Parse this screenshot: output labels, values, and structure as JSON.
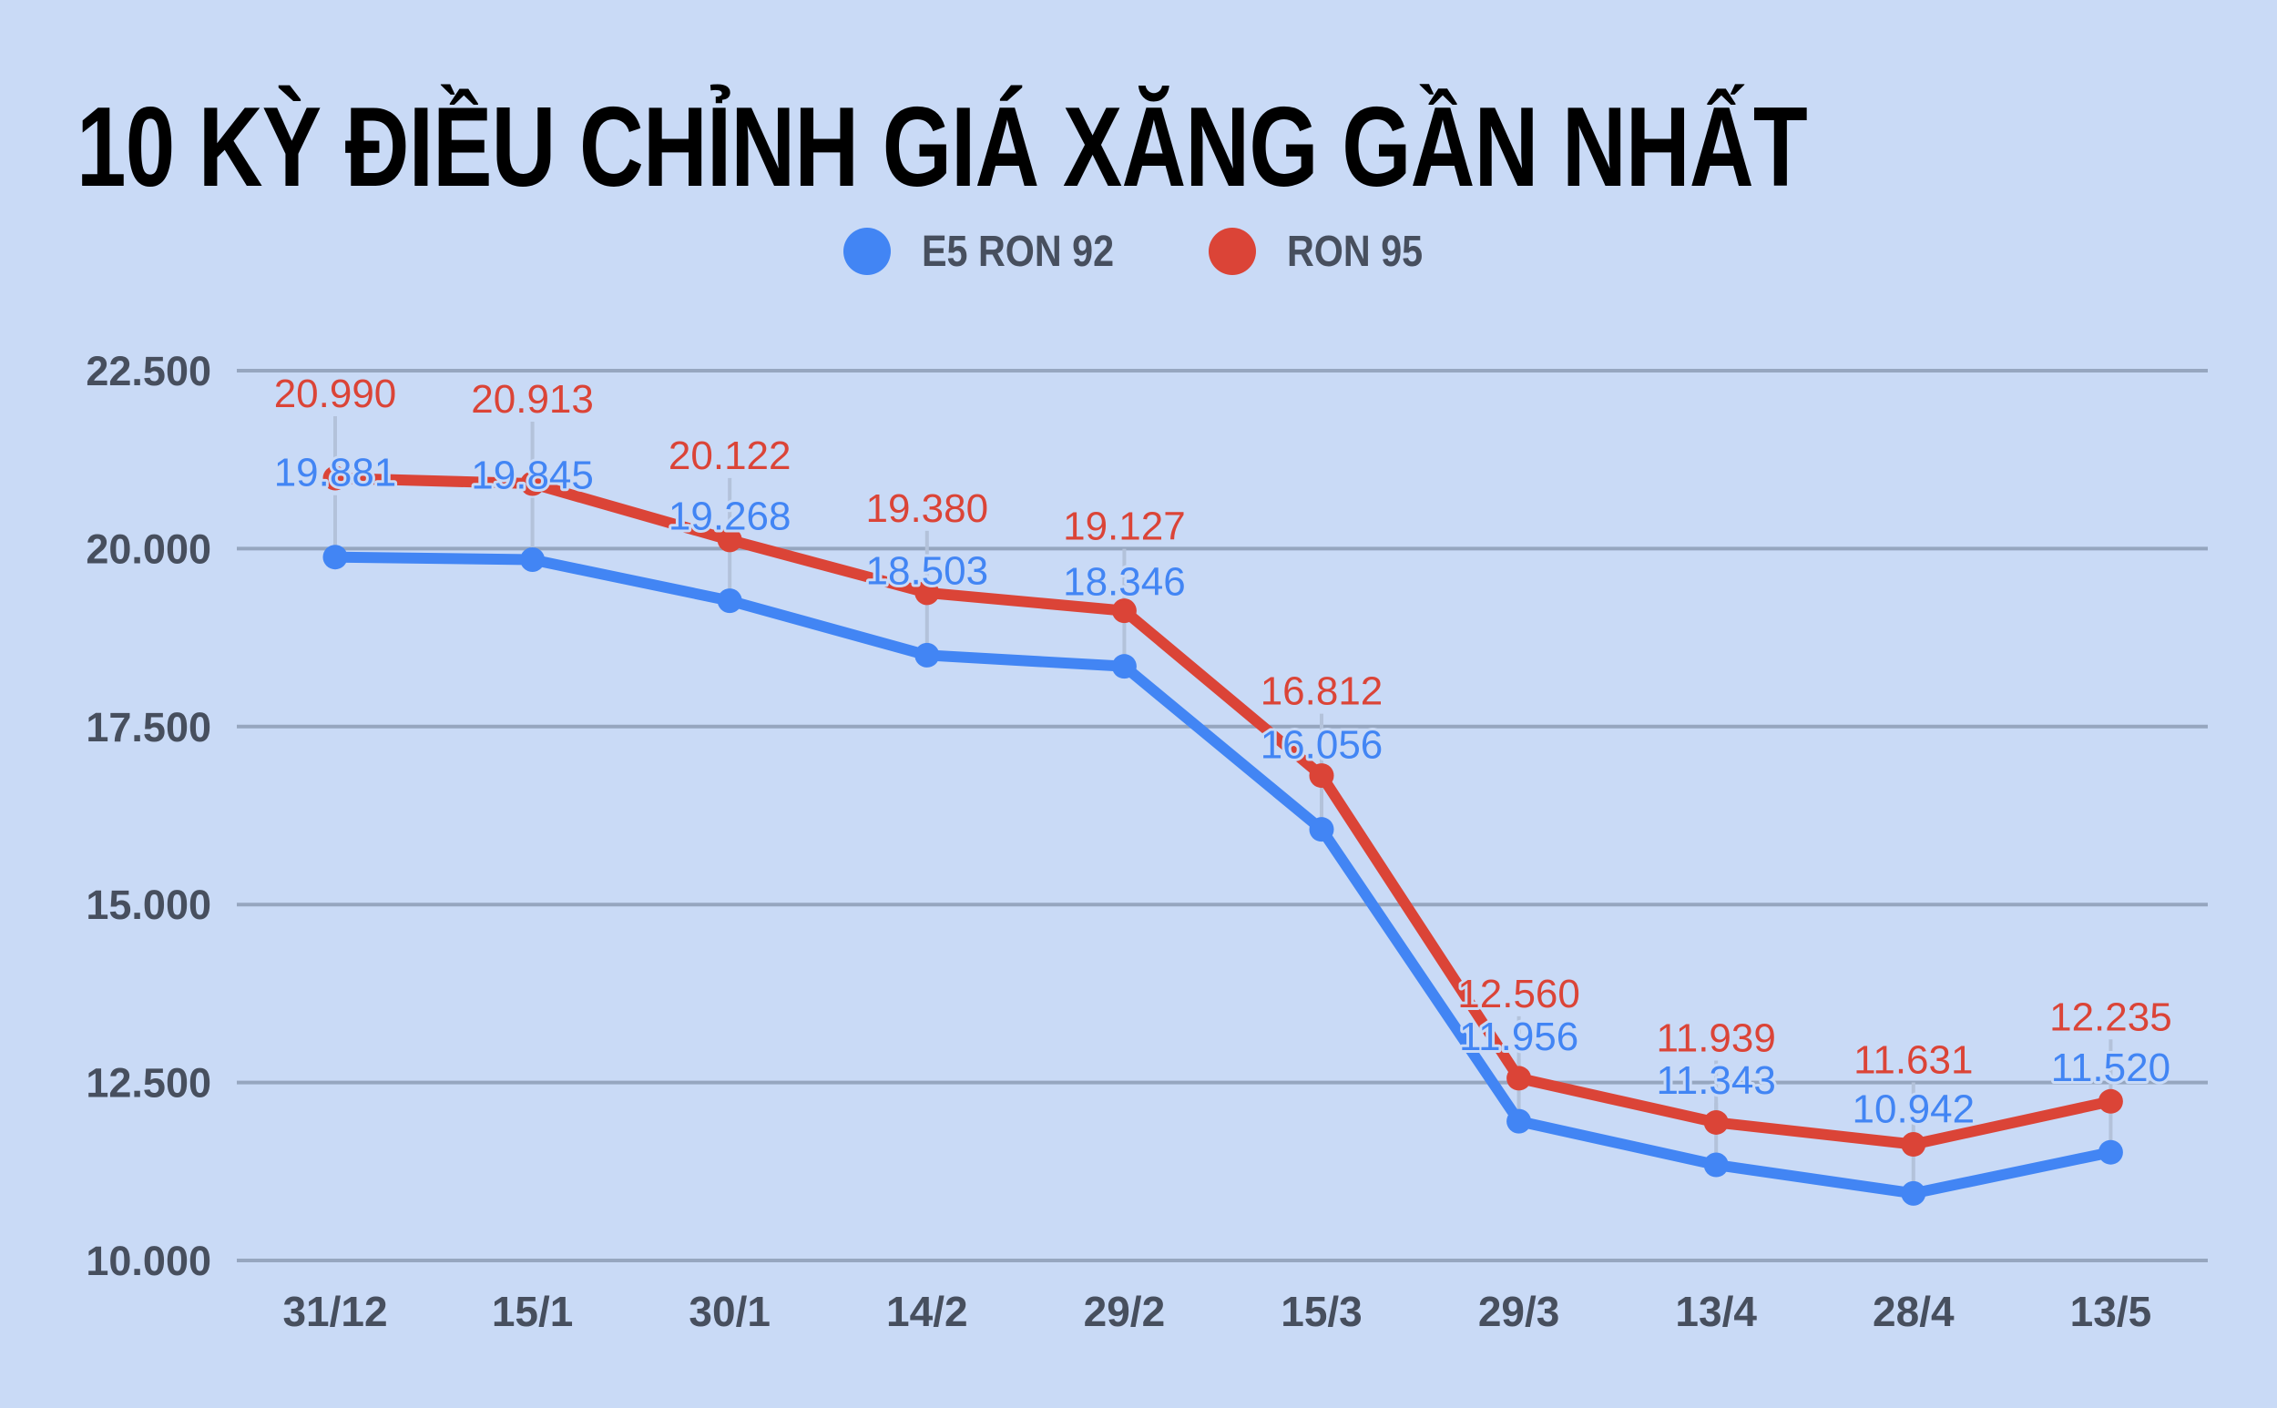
{
  "title": "10 KỲ ĐIỀU CHỈNH GIÁ XĂNG GẦN NHẤT",
  "legend": [
    {
      "label": "E5 RON 92",
      "color": "#4285F4",
      "icon": "circle-marker-icon"
    },
    {
      "label": "RON 95",
      "color": "#DB4437",
      "icon": "circle-marker-icon"
    }
  ],
  "colors": {
    "background": "#C9DAF6",
    "gridline": "#96A6BF",
    "axis_text": "#474F5E",
    "leader_line": "#B3C2DA"
  },
  "chart_data": {
    "type": "line",
    "title": "10 KỲ ĐIỀU CHỈNH GIÁ XĂNG GẦN NHẤT",
    "xlabel": "",
    "ylabel": "",
    "categories": [
      "31/12",
      "15/1",
      "30/1",
      "14/2",
      "29/2",
      "15/3",
      "29/3",
      "13/4",
      "28/4",
      "13/5"
    ],
    "series": [
      {
        "name": "E5 RON 92",
        "color": "#4285F4",
        "values": [
          19881,
          19845,
          19268,
          18503,
          18346,
          16056,
          11956,
          11343,
          10942,
          11520
        ],
        "labels": [
          "19.881",
          "19.845",
          "19.268",
          "18.503",
          "18.346",
          "16.056",
          "11.956",
          "11.343",
          "10.942",
          "11.520"
        ]
      },
      {
        "name": "RON 95",
        "color": "#DB4437",
        "values": [
          20990,
          20913,
          20122,
          19380,
          19127,
          16812,
          12560,
          11939,
          11631,
          12235
        ],
        "labels": [
          "20.990",
          "20.913",
          "20.122",
          "19.380",
          "19.127",
          "16.812",
          "12.560",
          "11.939",
          "11.631",
          "12.235"
        ]
      }
    ],
    "ylim": [
      10000,
      22500
    ],
    "yticks": [
      10000,
      12500,
      15000,
      17500,
      20000,
      22500
    ],
    "ytick_labels": [
      "10.000",
      "12.500",
      "15.000",
      "17.500",
      "20.000",
      "22.500"
    ],
    "grid": true,
    "legend_position": "top",
    "data_labels": true
  }
}
